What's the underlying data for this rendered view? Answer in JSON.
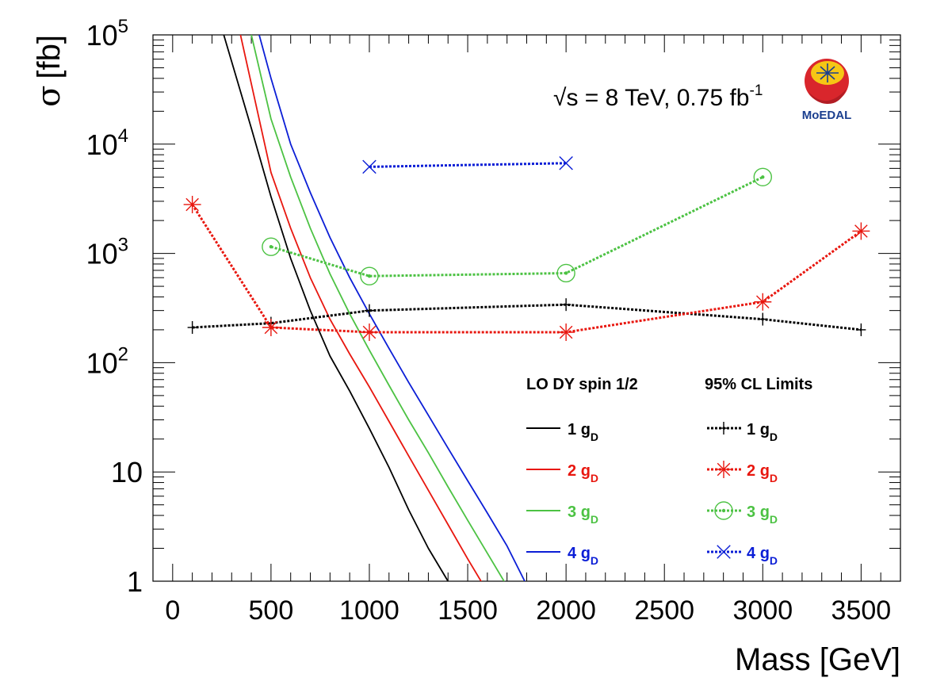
{
  "chart_data": {
    "type": "line",
    "title": "",
    "xlabel": "Mass [GeV]",
    "ylabel_symbol": "σ",
    "ylabel_unit": "[fb]",
    "xlim": [
      -100,
      3700
    ],
    "ylim_log10": [
      0,
      5
    ],
    "yscale": "log",
    "xticks": [
      0,
      500,
      1000,
      1500,
      2000,
      2500,
      3000,
      3500
    ],
    "xtick_labels": [
      "0",
      "500",
      "1000",
      "1500",
      "2000",
      "2500",
      "3000",
      "3500"
    ],
    "ytick_labels": [
      {
        "base": "1",
        "exp": ""
      },
      {
        "base": "10",
        "exp": ""
      },
      {
        "base": "10",
        "exp": "2"
      },
      {
        "base": "10",
        "exp": "3"
      },
      {
        "base": "10",
        "exp": "4"
      },
      {
        "base": "10",
        "exp": "5"
      }
    ],
    "annotation": {
      "sqrt": "√s",
      "energy": " = 8 TeV, 0.75 fb",
      "lumi_exp": "-1"
    },
    "logo_text": "MoEDAL",
    "legend": {
      "theory_header": "LO DY spin 1/2",
      "limits_header": "95% CL Limits",
      "entry_base": "g",
      "entry_sub": "D"
    },
    "colors": {
      "1": "#000000",
      "2": "#e8170f",
      "3": "#4cc243",
      "4": "#0b1ed6"
    },
    "theory_series": [
      {
        "name": "1 gD",
        "charge": 1,
        "x": [
          260,
          400,
          500,
          600,
          700,
          800,
          900,
          1000,
          1100,
          1200,
          1300,
          1400
        ],
        "y": [
          100000,
          14000,
          3300,
          900,
          300,
          115,
          55,
          25,
          11,
          4.5,
          2.0,
          1.0
        ]
      },
      {
        "name": "2 gD",
        "charge": 2,
        "x": [
          345,
          500,
          600,
          700,
          800,
          900,
          1000,
          1100,
          1200,
          1300,
          1400,
          1500,
          1600
        ],
        "y": [
          100000,
          5500,
          1700,
          600,
          250,
          120,
          60,
          29,
          14,
          6.8,
          3.3,
          1.6,
          0.8
        ]
      },
      {
        "name": "3 gD",
        "charge": 3,
        "x": [
          400,
          500,
          600,
          700,
          800,
          900,
          1000,
          1100,
          1200,
          1300,
          1400,
          1500,
          1600,
          1700
        ],
        "y": [
          100000,
          17000,
          5000,
          1700,
          650,
          280,
          130,
          62,
          30,
          15,
          7.3,
          3.6,
          1.8,
          0.9
        ]
      },
      {
        "name": "4 gD",
        "charge": 4,
        "x": [
          440,
          500,
          600,
          700,
          800,
          900,
          1000,
          1100,
          1200,
          1300,
          1400,
          1500,
          1600,
          1700,
          1790
        ],
        "y": [
          100000,
          40000,
          10000,
          3600,
          1400,
          600,
          280,
          135,
          66,
          33,
          16.5,
          8.3,
          4.2,
          2.1,
          1.0
        ]
      }
    ],
    "limit_series": [
      {
        "name": "1 gD",
        "charge": 1,
        "marker": "plus",
        "x": [
          100,
          500,
          1000,
          2000,
          3000,
          3500
        ],
        "y": [
          210,
          230,
          300,
          340,
          250,
          200
        ]
      },
      {
        "name": "2 gD",
        "charge": 2,
        "marker": "star",
        "x": [
          100,
          500,
          1000,
          2000,
          3000,
          3500
        ],
        "y": [
          2800,
          210,
          190,
          190,
          360,
          1600
        ]
      },
      {
        "name": "3 gD",
        "charge": 3,
        "marker": "circle",
        "x": [
          500,
          1000,
          2000,
          3000
        ],
        "y": [
          1150,
          620,
          660,
          5000
        ]
      },
      {
        "name": "4 gD",
        "charge": 4,
        "marker": "cross",
        "x": [
          1000,
          2000
        ],
        "y": [
          6200,
          6700
        ]
      }
    ]
  }
}
